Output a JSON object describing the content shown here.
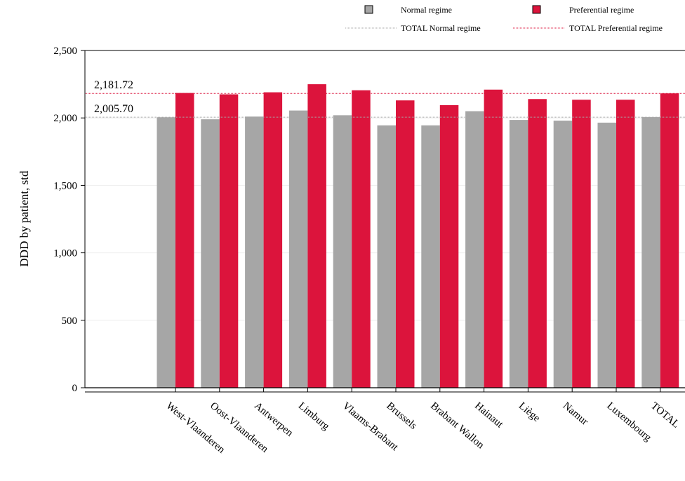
{
  "chart_data": {
    "type": "bar",
    "ylabel": "DDD by patient, std",
    "ylim": [
      0,
      2500
    ],
    "yticks": [
      0,
      500,
      1000,
      1500,
      2000,
      2500
    ],
    "ytick_labels": [
      "0",
      "500",
      "1,000",
      "1,500",
      "2,000",
      "2,500"
    ],
    "grid": true,
    "legend_position": "top",
    "categories": [
      "West-Vlaanderen",
      "Oost-Vlaanderen",
      "Antwerpen",
      "Limburg",
      "Vlaams-Brabant",
      "Brussels",
      "Brabant Wallon",
      "Hainaut",
      "Liège",
      "Namur",
      "Luxembourg",
      "TOTAL"
    ],
    "series": [
      {
        "name": "Normal regime",
        "color": "#a6a6a6",
        "values": [
          2005,
          1990,
          2010,
          2055,
          2020,
          1945,
          1945,
          2050,
          1985,
          1980,
          1965,
          2006
        ]
      },
      {
        "name": "Preferential regime",
        "color": "#dc143c",
        "values": [
          2185,
          2175,
          2190,
          2250,
          2205,
          2130,
          2095,
          2210,
          2140,
          2135,
          2135,
          2182
        ]
      }
    ],
    "reference_lines": [
      {
        "name": "TOTAL Normal regime",
        "value": 2005.7,
        "label": "2,005.70",
        "color": "#a6a6a6"
      },
      {
        "name": "TOTAL Preferential regime",
        "value": 2181.72,
        "label": "2,181.72",
        "color": "#dc143c"
      }
    ]
  }
}
